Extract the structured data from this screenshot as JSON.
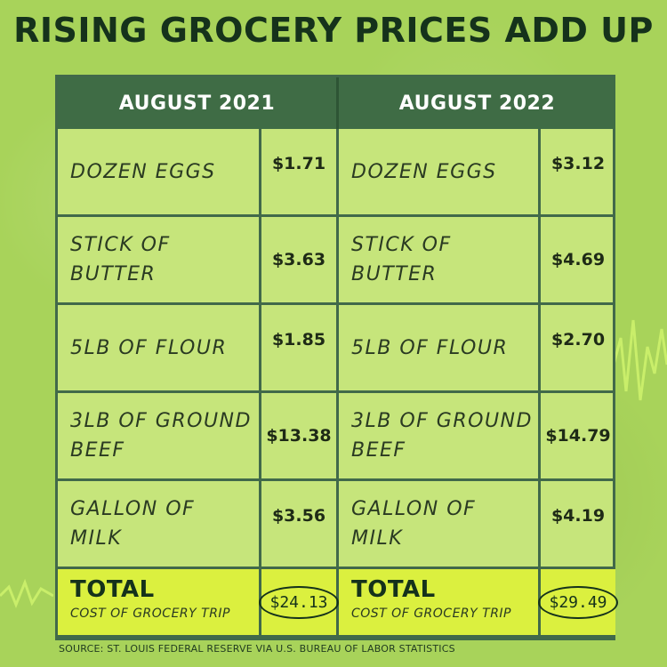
{
  "title": "RISING GROCERY PRICES ADD UP",
  "columns": [
    "AUGUST 2021",
    "AUGUST 2022"
  ],
  "rows": [
    {
      "item_line1": "DOZEN EGGS",
      "item_line2": "",
      "price_2021": "$1.71",
      "price_2022": "$3.12"
    },
    {
      "item_line1": "STICK OF",
      "item_line2": "BUTTER",
      "price_2021": "$3.63",
      "price_2022": "$4.69"
    },
    {
      "item_line1": "5LB  OF FLOUR",
      "item_line2": "",
      "price_2021": "$1.85",
      "price_2022": "$2.70"
    },
    {
      "item_line1": "3LB OF GROUND",
      "item_line2": "BEEF",
      "price_2021": "$13.38",
      "price_2022": "$14.79"
    },
    {
      "item_line1": "GALLON OF",
      "item_line2": "MILK",
      "price_2021": "$3.56",
      "price_2022": "$4.19"
    }
  ],
  "total": {
    "label": "TOTAL",
    "sublabel": "COST OF GROCERY TRIP",
    "value_2021": "$24.13",
    "value_2022": "$29.49"
  },
  "source": "SOURCE: ST. LOUIS FEDERAL RESERVE VIA U.S. BUREAU OF LABOR STATISTICS",
  "colors": {
    "background": "#a8d35a",
    "header": "#3f6c45",
    "total_row": "#dbf03f",
    "title": "#15321b"
  },
  "chart_data": {
    "type": "table",
    "title": "RISING GROCERY PRICES ADD UP",
    "columns": [
      "",
      "AUGUST 2021",
      "AUGUST 2022"
    ],
    "rows": [
      [
        "DOZEN EGGS",
        1.71,
        3.12
      ],
      [
        "STICK OF BUTTER",
        3.63,
        4.69
      ],
      [
        "5LB OF FLOUR",
        1.85,
        2.7
      ],
      [
        "3LB OF GROUND BEEF",
        13.38,
        14.79
      ],
      [
        "GALLON OF MILK",
        3.56,
        4.19
      ],
      [
        "TOTAL COST OF GROCERY TRIP",
        24.13,
        29.49
      ]
    ]
  }
}
